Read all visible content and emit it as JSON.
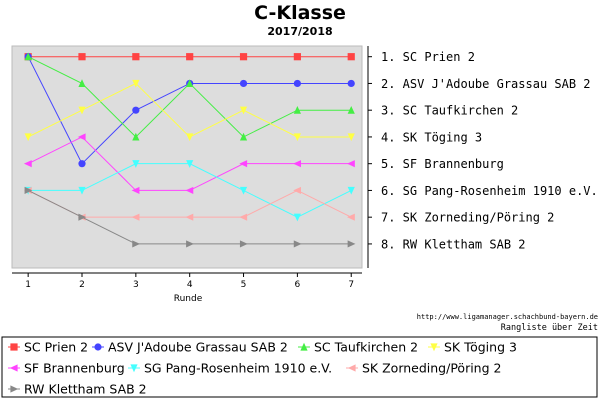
{
  "chart_data": {
    "type": "line",
    "title": "C-Klasse",
    "subtitle": "2017/2018",
    "xlabel": "Runde",
    "ylabel": "",
    "x": [
      1,
      2,
      3,
      4,
      5,
      6,
      7
    ],
    "xlim": [
      0.7,
      7.2
    ],
    "ylim": [
      0.6,
      8.9
    ],
    "y_inverted": true,
    "grid": false,
    "legend_position": "bottom",
    "right_axis_labels": [
      "1.  SC Prien 2",
      "2.  ASV J'Adoube Grassau SAB 2",
      "3.  SC Taufkirchen 2",
      "4.  SK Töging 3",
      "5.  SF Brannenburg",
      "6.  SG Pang-Rosenheim 1910 e.V.",
      "7.  SK Zorneding/Pöring 2",
      "8.  RW Klettham SAB 2"
    ],
    "series": [
      {
        "name": "SC Prien 2",
        "color": "#ff4444",
        "marker": "square",
        "values": [
          1,
          1,
          1,
          1,
          1,
          1,
          1
        ]
      },
      {
        "name": "ASV J'Adoube Grassau SAB 2",
        "color": "#4444ff",
        "marker": "circle",
        "values": [
          1,
          5,
          3,
          2,
          2,
          2,
          2
        ]
      },
      {
        "name": "SC Taufkirchen 2",
        "color": "#44ee44",
        "marker": "triangle-up",
        "values": [
          1,
          2,
          4,
          2,
          4,
          3,
          3
        ]
      },
      {
        "name": "SK Töging 3",
        "color": "#ffff44",
        "marker": "triangle-down",
        "values": [
          4,
          3,
          2,
          4,
          3,
          4,
          4
        ]
      },
      {
        "name": "SF Brannenburg",
        "color": "#ff44ff",
        "marker": "triangle-left",
        "values": [
          5,
          4,
          6,
          6,
          5,
          5,
          5
        ]
      },
      {
        "name": "SG Pang-Rosenheim 1910 e.V.",
        "color": "#44ffff",
        "marker": "triangle-down",
        "values": [
          6,
          6,
          5,
          5,
          6,
          7,
          6
        ]
      },
      {
        "name": "SK Zorneding/Pöring 2",
        "color": "#ffaaaa",
        "marker": "triangle-left",
        "values": [
          6,
          7,
          7,
          7,
          7,
          6,
          7
        ]
      },
      {
        "name": "RW Klettham SAB 2",
        "color": "#888888",
        "marker": "triangle-right",
        "values": [
          6,
          7,
          8,
          8,
          8,
          8,
          8
        ]
      }
    ],
    "annotations": [
      "http://www.ligamanager.schachbund-bayern.de",
      "Rangliste über Zeit"
    ]
  },
  "colors": {
    "plot_background": "#dddddd",
    "page_background": "#ffffff"
  }
}
